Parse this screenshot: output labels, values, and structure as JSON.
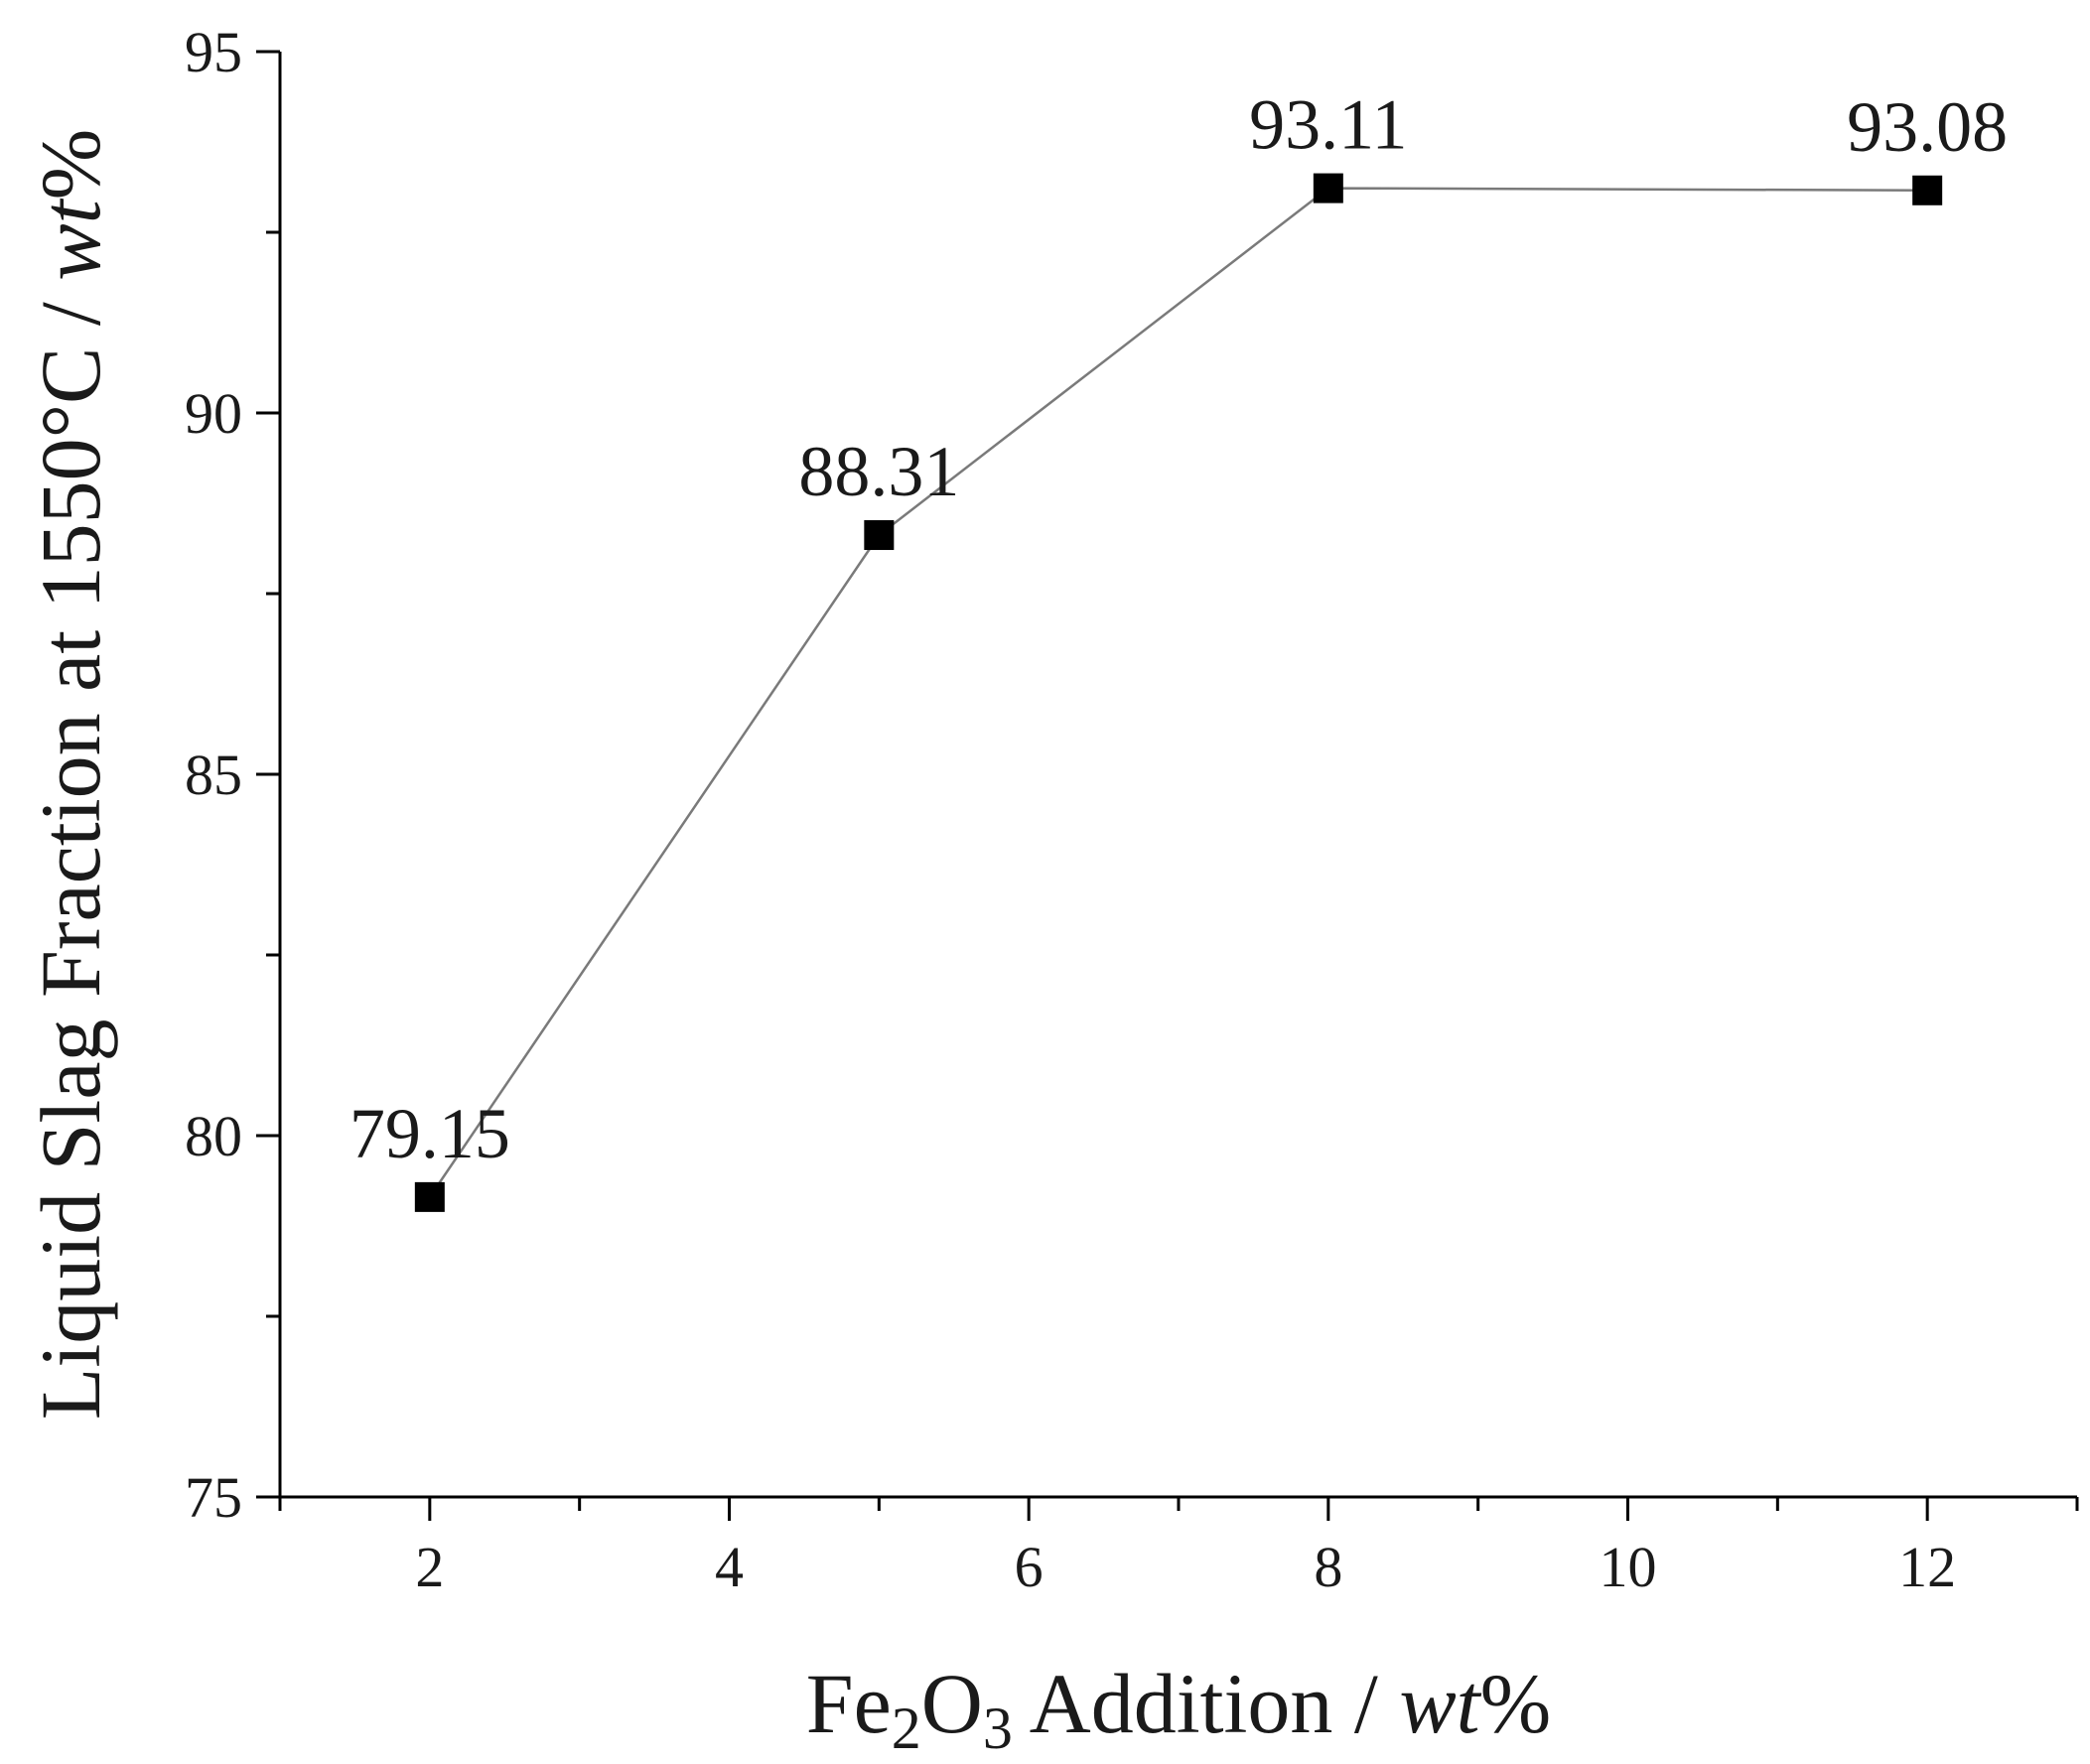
{
  "chart_data": {
    "type": "line",
    "x": [
      2,
      5,
      8,
      12
    ],
    "series": [
      {
        "values": [
          79.15,
          88.31,
          93.11,
          93.08
        ]
      }
    ],
    "data_labels": [
      "79.15",
      "88.31",
      "93.11",
      "93.08"
    ],
    "xlim": [
      1,
      13
    ],
    "ylim": [
      75,
      95
    ],
    "x_ticks": [
      2,
      4,
      6,
      8,
      10,
      12
    ],
    "y_ticks": [
      75,
      80,
      85,
      90,
      95
    ],
    "x_tick_labels": [
      "2",
      "4",
      "6",
      "8",
      "10",
      "12"
    ],
    "y_tick_labels": [
      "75",
      "80",
      "85",
      "90",
      "95"
    ],
    "xlabel": {
      "main": "Fe",
      "sub1": "2",
      "mid": "O",
      "sub2": "3",
      "rest": " Addition / ",
      "italic": "wt",
      "suffix": "%"
    },
    "ylabel": {
      "main": "Liquid Slag Fraction at 1550°C / ",
      "italic": "wt",
      "suffix": "%"
    },
    "grid": false,
    "marker": "square",
    "colors": {
      "line": "#7a7a7a",
      "marker": "#000000",
      "axis": "#000000"
    }
  }
}
